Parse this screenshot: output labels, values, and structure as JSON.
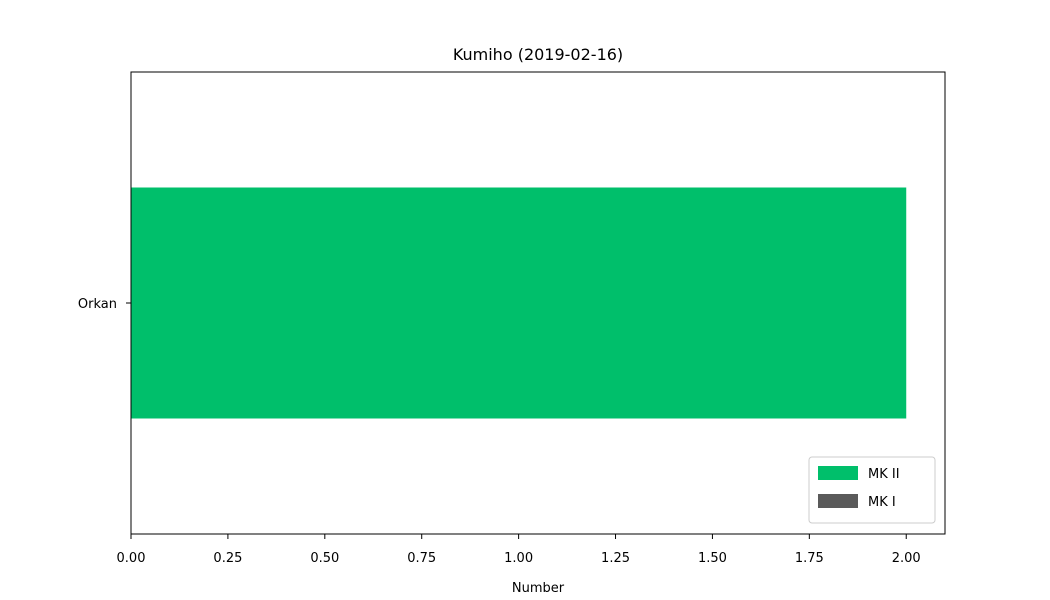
{
  "chart_data": {
    "type": "bar",
    "orientation": "horizontal",
    "stacked": true,
    "title": "Kumiho (2019-02-16)",
    "xlabel": "Number",
    "ylabel": "",
    "categories": [
      "Orkan"
    ],
    "series": [
      {
        "name": "MK I",
        "values": [
          0
        ],
        "color": "#5a5a5a"
      },
      {
        "name": "MK II",
        "values": [
          2
        ],
        "color": "#00bf6b"
      }
    ],
    "xlim": [
      0,
      2.1
    ],
    "xticks": [
      "0.00",
      "0.25",
      "0.50",
      "0.75",
      "1.00",
      "1.25",
      "1.50",
      "1.75",
      "2.00"
    ],
    "grid": false,
    "legend": {
      "placement": "lower-right",
      "entries": [
        {
          "name": "MK II",
          "color": "#00bf6b"
        },
        {
          "name": "MK I",
          "color": "#5a5a5a"
        }
      ]
    }
  }
}
